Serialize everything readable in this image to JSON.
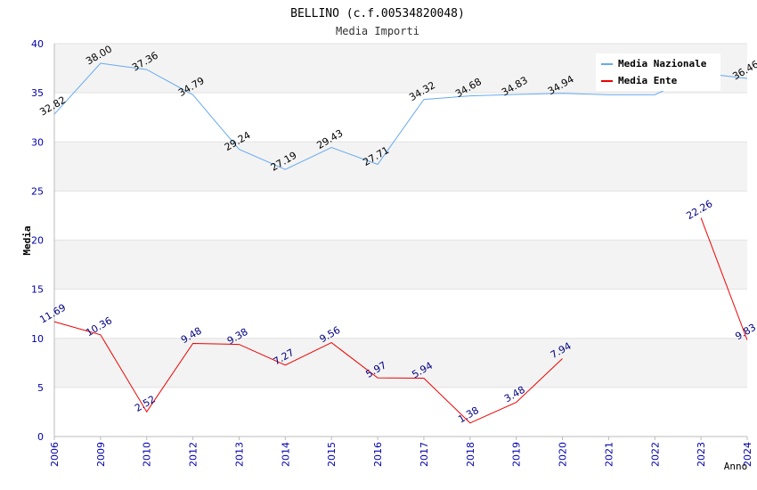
{
  "chart_data": {
    "type": "line",
    "title": "BELLINO (c.f.00534820048)",
    "subtitle": "Media Importi",
    "xlabel": "Anno",
    "ylabel": "Media",
    "ylim": [
      0,
      40
    ],
    "yticks": [
      0,
      5,
      10,
      15,
      20,
      25,
      30,
      35,
      40
    ],
    "grid": "horizontal bands",
    "legend_position": "top-right",
    "categories": [
      "2006",
      "2009",
      "2010",
      "2012",
      "2013",
      "2014",
      "2015",
      "2016",
      "2017",
      "2018",
      "2019",
      "2020",
      "2021",
      "2022",
      "2023",
      "2024"
    ],
    "series": [
      {
        "name": "Media Nazionale",
        "color": "#66aaee",
        "label_color": "#000000",
        "values": [
          32.82,
          38.0,
          37.36,
          34.79,
          29.24,
          27.19,
          29.43,
          27.71,
          34.32,
          34.68,
          34.83,
          34.94,
          34.8,
          34.8,
          37.0,
          36.46
        ],
        "labels": [
          "32.82",
          "38.00",
          "37.36",
          "34.79",
          "29.24",
          "27.19",
          "29.43",
          "27.71",
          "34.32",
          "34.68",
          "34.83",
          "34.94",
          "",
          "",
          "",
          "36.46"
        ]
      },
      {
        "name": "Media Ente",
        "color": "#ee0000",
        "label_color": "#000080",
        "values": [
          11.69,
          10.36,
          2.52,
          9.48,
          9.38,
          7.27,
          9.56,
          5.97,
          5.94,
          1.38,
          3.48,
          7.94,
          null,
          null,
          22.26,
          9.83
        ],
        "labels": [
          "11.69",
          "10.36",
          "2.52",
          "9.48",
          "9.38",
          "7.27",
          "9.56",
          "5.97",
          "5.94",
          "1.38",
          "3.48",
          "7.94",
          "",
          "",
          "22.26",
          "9.83"
        ]
      }
    ]
  },
  "colors": {
    "band": "#f3f3f3",
    "axis": "#bbbbbb",
    "tick_label": "#0000aa",
    "title": "#000000",
    "subtitle": "#333333"
  }
}
